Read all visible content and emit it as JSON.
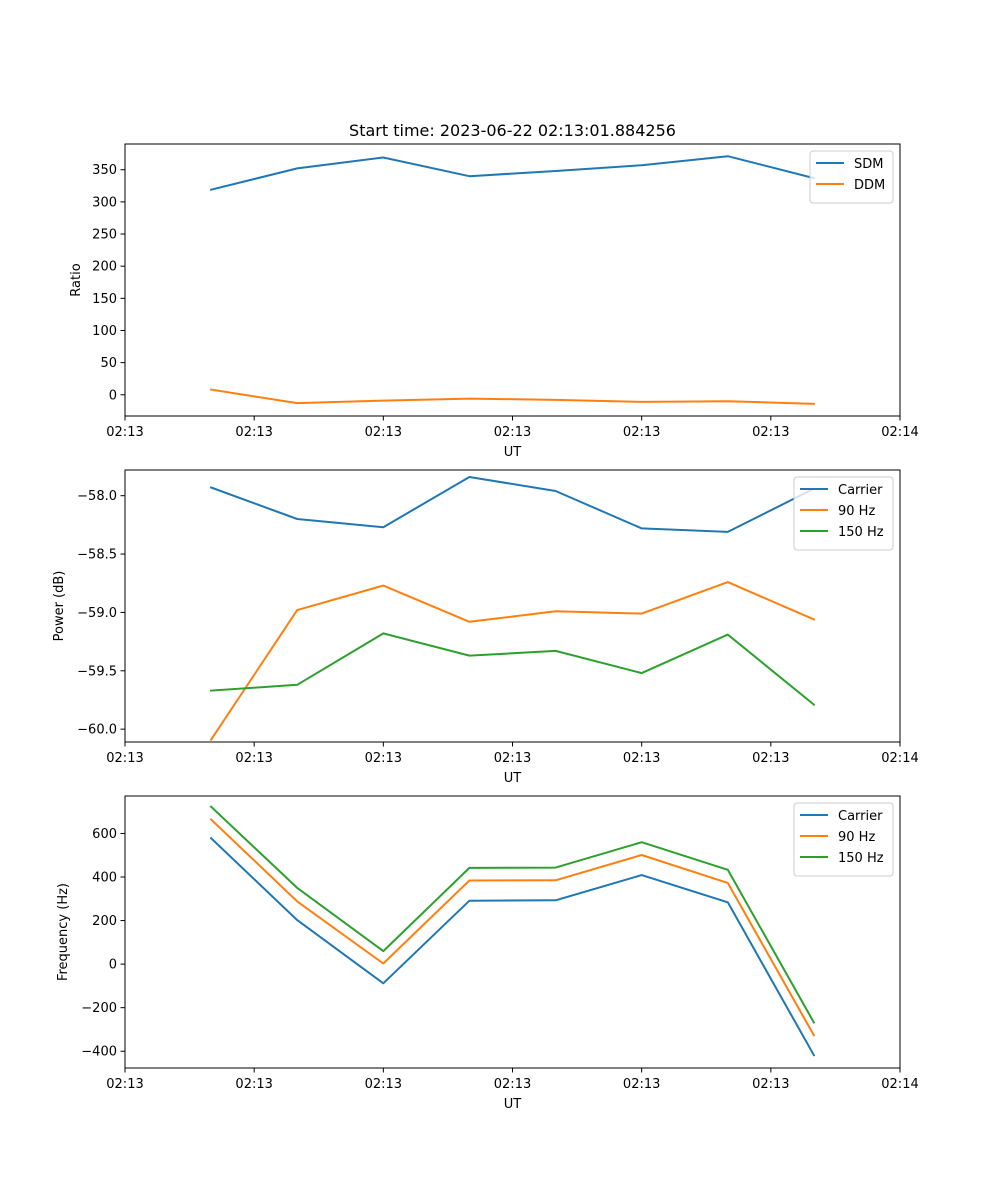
{
  "title": "Start time: 2023-06-22 02:13:01.884256",
  "colors": {
    "c0": "#1f77b4",
    "c1": "#ff7f0e",
    "c2": "#2ca02c"
  },
  "chart_data": [
    {
      "type": "line",
      "ylabel": "Ratio",
      "xlabel": "UT",
      "xlim": [
        0,
        9
      ],
      "ylim": [
        -33,
        390
      ],
      "x": [
        1,
        2,
        3,
        4,
        5,
        6,
        7,
        8
      ],
      "xticks": [
        0,
        1.5,
        3,
        4.5,
        6,
        7.5,
        9
      ],
      "xtick_labels": [
        "02:13",
        "02:13",
        "02:13",
        "02:13",
        "02:13",
        "02:13",
        "02:14"
      ],
      "yticks": [
        0,
        50,
        100,
        150,
        200,
        250,
        300,
        350
      ],
      "ytick_labels": [
        "0",
        "50",
        "100",
        "150",
        "200",
        "250",
        "300",
        "350"
      ],
      "legend": "upper right",
      "series": [
        {
          "name": "SDM",
          "color": "#1f77b4",
          "values": [
            319,
            352,
            369,
            340,
            348,
            357,
            371,
            337
          ]
        },
        {
          "name": "DDM",
          "color": "#ff7f0e",
          "values": [
            8,
            -13,
            -9,
            -6,
            -8,
            -11,
            -10,
            -14
          ]
        }
      ]
    },
    {
      "type": "line",
      "ylabel": "Power (dB)",
      "xlabel": "UT",
      "xlim": [
        0,
        9
      ],
      "ylim": [
        -60.11,
        -57.78
      ],
      "x": [
        1,
        2,
        3,
        4,
        5,
        6,
        7,
        8
      ],
      "xticks": [
        0,
        1.5,
        3,
        4.5,
        6,
        7.5,
        9
      ],
      "xtick_labels": [
        "02:13",
        "02:13",
        "02:13",
        "02:13",
        "02:13",
        "02:13",
        "02:14"
      ],
      "yticks": [
        -58.0,
        -58.5,
        -59.0,
        -59.5,
        -60.0
      ],
      "ytick_labels": [
        "−58.0",
        "−58.5",
        "−59.0",
        "−59.5",
        "−60.0"
      ],
      "legend": "upper right",
      "series": [
        {
          "name": "Carrier",
          "color": "#1f77b4",
          "values": [
            -57.93,
            -58.2,
            -58.27,
            -57.84,
            -57.96,
            -58.28,
            -58.31,
            -57.94
          ]
        },
        {
          "name": "90 Hz",
          "color": "#ff7f0e",
          "values": [
            -60.09,
            -58.98,
            -58.77,
            -59.08,
            -58.99,
            -59.01,
            -58.74,
            -59.06
          ]
        },
        {
          "name": "150 Hz",
          "color": "#2ca02c",
          "values": [
            -59.67,
            -59.62,
            -59.18,
            -59.37,
            -59.33,
            -59.52,
            -59.19,
            -59.79
          ]
        }
      ]
    },
    {
      "type": "line",
      "ylabel": "Frequency (Hz)",
      "xlabel": "UT",
      "xlim": [
        0,
        9
      ],
      "ylim": [
        -477,
        772
      ],
      "x": [
        1,
        2,
        3,
        4,
        5,
        6,
        7,
        8
      ],
      "xticks": [
        0,
        1.5,
        3,
        4.5,
        6,
        7.5,
        9
      ],
      "xtick_labels": [
        "02:13",
        "02:13",
        "02:13",
        "02:13",
        "02:13",
        "02:13",
        "02:14"
      ],
      "yticks": [
        600,
        400,
        200,
        0,
        -200,
        -400
      ],
      "ytick_labels": [
        "600",
        "400",
        "200",
        "0",
        "−200",
        "−400"
      ],
      "legend": "upper right",
      "series": [
        {
          "name": "Carrier",
          "color": "#1f77b4",
          "values": [
            578,
            202,
            -88,
            291,
            293,
            409,
            284,
            -418
          ]
        },
        {
          "name": "90 Hz",
          "color": "#ff7f0e",
          "values": [
            664,
            288,
            3,
            384,
            385,
            501,
            373,
            -327
          ]
        },
        {
          "name": "150 Hz",
          "color": "#2ca02c",
          "values": [
            723,
            350,
            60,
            442,
            443,
            560,
            433,
            -268
          ]
        }
      ]
    }
  ]
}
